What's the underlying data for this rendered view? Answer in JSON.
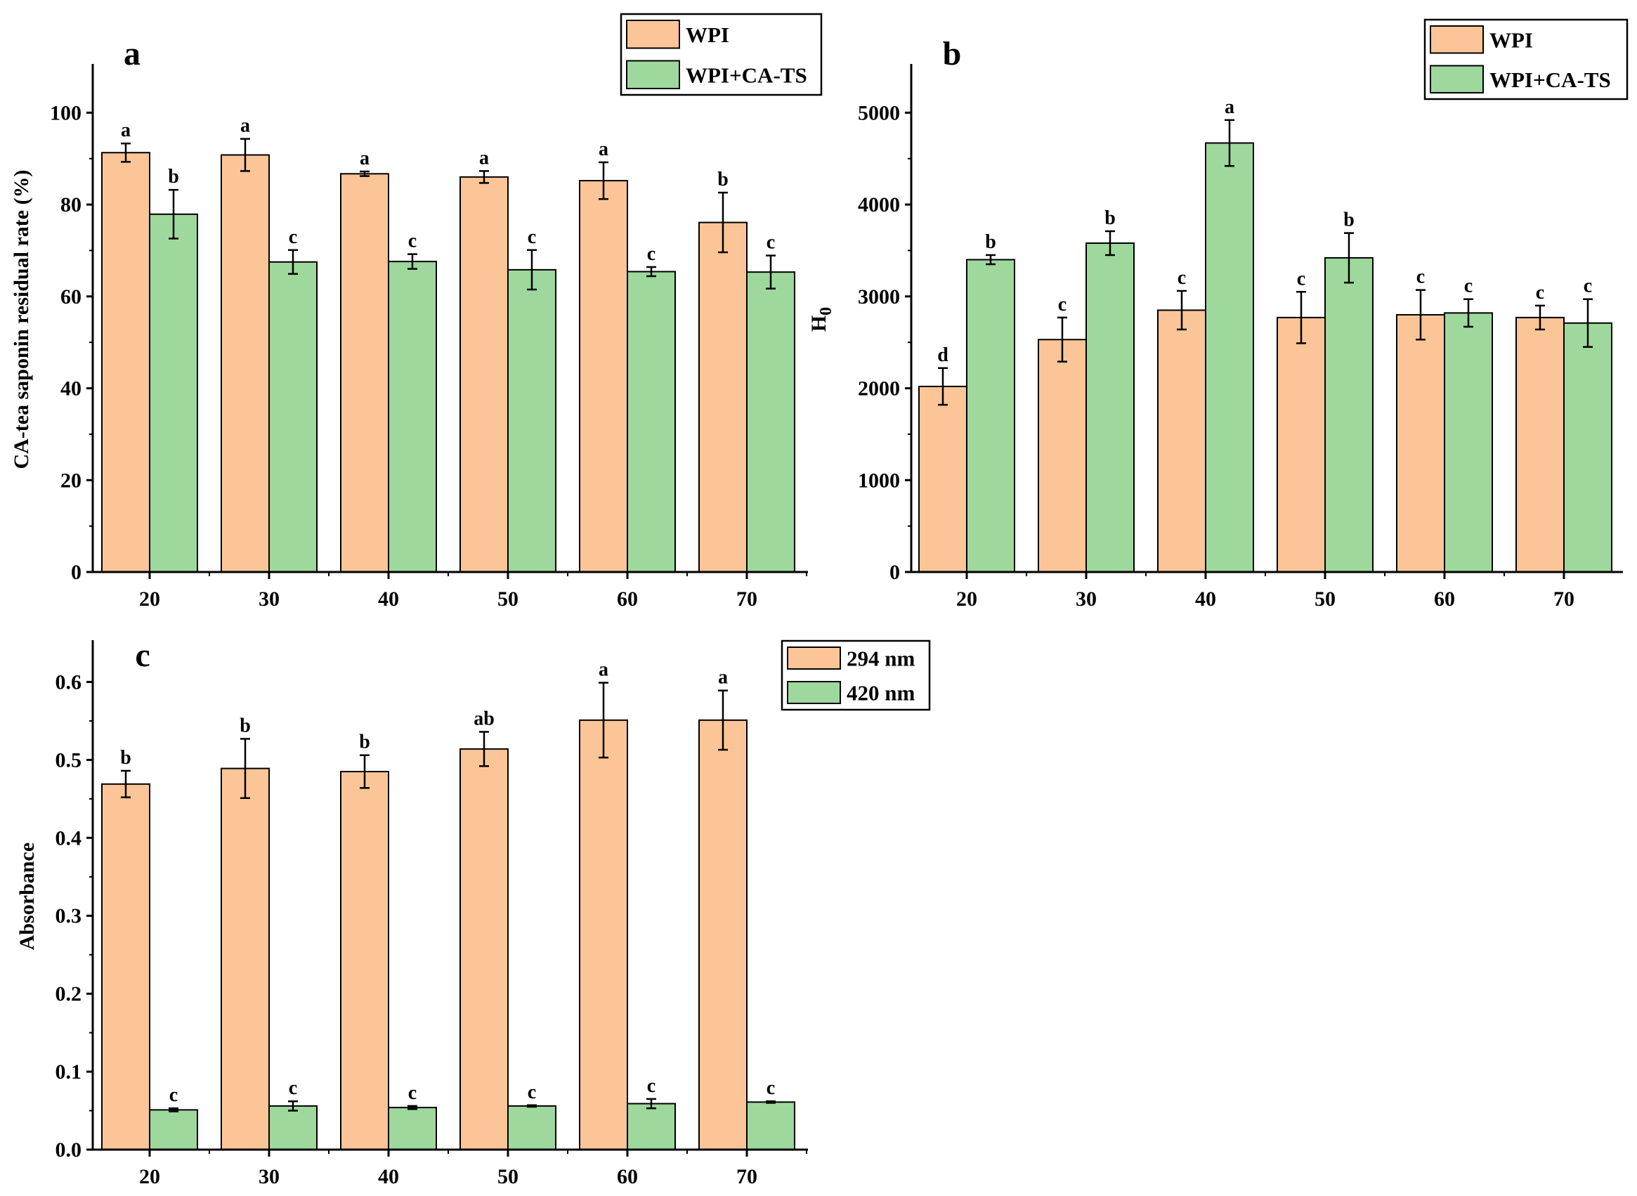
{
  "chart_data": [
    {
      "id": "a",
      "type": "bar",
      "panel_label": "a",
      "ylabel": "CA-tea saponin residual rate (%)",
      "xlabel": "",
      "categories": [
        "20",
        "30",
        "40",
        "50",
        "60",
        "70"
      ],
      "ylim": [
        0,
        110
      ],
      "yticks": [
        0,
        20,
        40,
        60,
        80,
        100
      ],
      "legend_position": "top-right",
      "series": [
        {
          "name": "WPI",
          "color": "#fbc597",
          "values": [
            91.3,
            90.8,
            86.7,
            86.0,
            85.2,
            76.1
          ],
          "errors": [
            2.0,
            3.5,
            0.5,
            1.3,
            4.0,
            6.5
          ],
          "letters": [
            "a",
            "a",
            "a",
            "a",
            "a",
            "b"
          ]
        },
        {
          "name": "WPI+CA-TS",
          "color": "#9ed89c",
          "values": [
            77.9,
            67.5,
            67.6,
            65.8,
            65.4,
            65.3
          ],
          "errors": [
            5.3,
            2.6,
            1.6,
            4.3,
            1.0,
            3.6
          ],
          "letters": [
            "b",
            "c",
            "c",
            "c",
            "c",
            "c"
          ]
        }
      ]
    },
    {
      "id": "b",
      "type": "bar",
      "panel_label": "b",
      "ylabel": "H0",
      "ylabel_main": "H",
      "ylabel_sub": "0",
      "xlabel": "",
      "categories": [
        "20",
        "30",
        "40",
        "50",
        "60",
        "70"
      ],
      "ylim": [
        0,
        5500
      ],
      "yticks": [
        0,
        1000,
        2000,
        3000,
        4000,
        5000
      ],
      "legend_position": "top-right",
      "series": [
        {
          "name": "WPI",
          "color": "#fbc597",
          "values": [
            2020,
            2530,
            2850,
            2770,
            2800,
            2770
          ],
          "errors": [
            200,
            240,
            210,
            280,
            270,
            130
          ],
          "letters": [
            "d",
            "c",
            "c",
            "c",
            "c",
            "c"
          ]
        },
        {
          "name": "WPI+CA-TS",
          "color": "#9ed89c",
          "values": [
            3400,
            3580,
            4670,
            3420,
            2820,
            2710
          ],
          "errors": [
            50,
            130,
            250,
            270,
            150,
            260
          ],
          "letters": [
            "b",
            "b",
            "a",
            "b",
            "c",
            "c"
          ]
        }
      ]
    },
    {
      "id": "c",
      "type": "bar",
      "panel_label": "c",
      "ylabel": "Absorbance",
      "xlabel": "",
      "categories": [
        "20",
        "30",
        "40",
        "50",
        "60",
        "70"
      ],
      "ylim": [
        0,
        0.65
      ],
      "yticks": [
        "0.0",
        "0.1",
        "0.2",
        "0.3",
        "0.4",
        "0.5",
        "0.6"
      ],
      "legend_position": "top-right",
      "series": [
        {
          "name": "294 nm",
          "color": "#fbc597",
          "values": [
            0.469,
            0.489,
            0.485,
            0.514,
            0.551,
            0.551
          ],
          "errors": [
            0.017,
            0.038,
            0.021,
            0.022,
            0.048,
            0.038
          ],
          "letters": [
            "b",
            "b",
            "b",
            "ab",
            "a",
            "a"
          ]
        },
        {
          "name": "420 nm",
          "color": "#9ed89c",
          "values": [
            0.051,
            0.056,
            0.054,
            0.056,
            0.059,
            0.061
          ],
          "errors": [
            0.002,
            0.006,
            0.002,
            0.001,
            0.006,
            0.001
          ],
          "letters": [
            "c",
            "c",
            "c",
            "c",
            "c",
            "c"
          ]
        }
      ]
    }
  ]
}
